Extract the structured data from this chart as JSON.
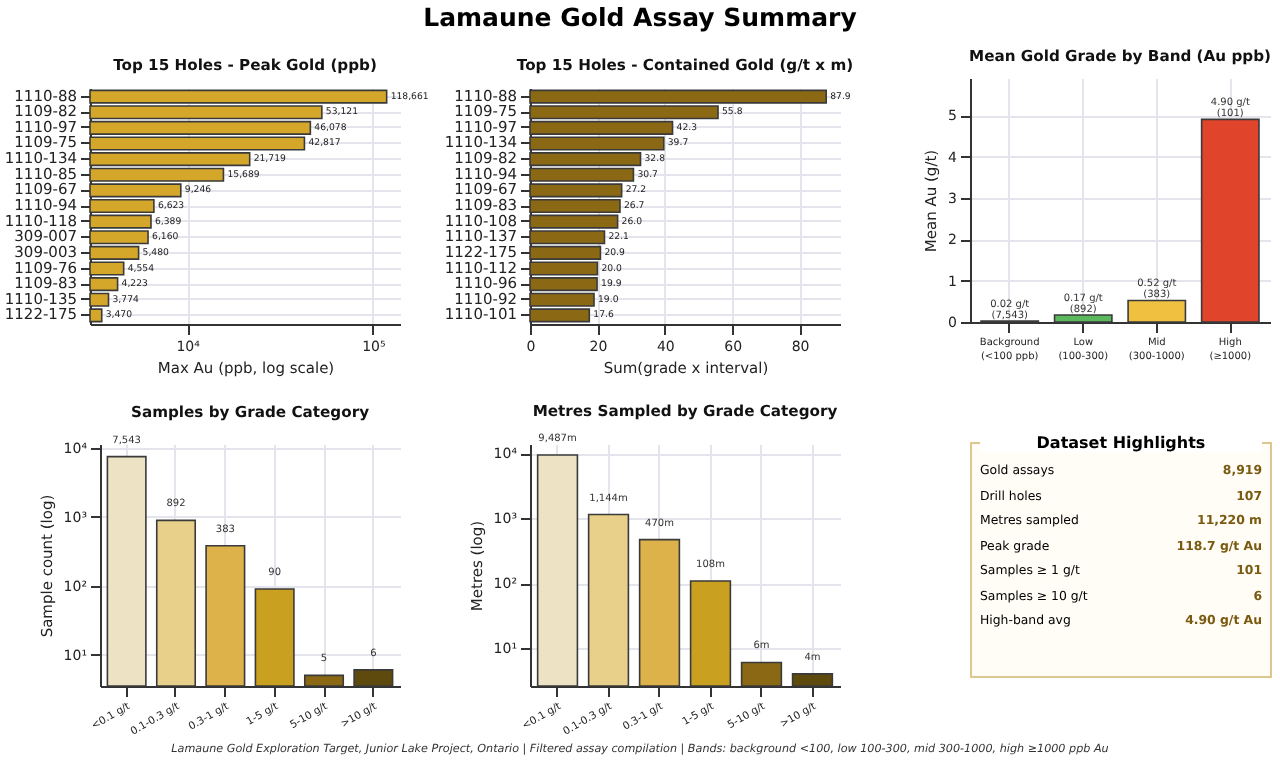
{
  "chart_data": [
    {
      "type": "other",
      "title": "Lamaune Gold Assay Summary",
      "annotations": [
        "Lamaune Gold Exploration Target, Junior Lake Project, Ontario  |  Filtered assay compilation  |  Bands: background <100, low 100-300, mid 300-1000, high ≥1000 ppb Au"
      ]
    },
    {
      "type": "bar",
      "orientation": "horizontal",
      "title": "Top 15 Holes - Peak Gold (ppb)",
      "xlabel": "Max Au (ppb, log scale)",
      "log": "x",
      "categories": [
        "1110-88",
        "1109-82",
        "1110-97",
        "1109-75",
        "1110-134",
        "1110-85",
        "1109-67",
        "1110-94",
        "1110-118",
        "309-007",
        "309-003",
        "1109-76",
        "1109-83",
        "1110-135",
        "1122-175"
      ],
      "values": [
        118661,
        53121,
        46078,
        42817,
        21719,
        15689,
        9246,
        6623,
        6389,
        6160,
        5480,
        4554,
        4223,
        3774,
        3470
      ],
      "value_labels": [
        "118,661",
        "53,121",
        "46,078",
        "42,817",
        "21,719",
        "15,689",
        "9,246",
        "6,623",
        "6,389",
        "6,160",
        "5,480",
        "4,554",
        "4,223",
        "3,774",
        "3,470"
      ],
      "color": "#d4a62a",
      "xlim": [
        3000,
        140000
      ],
      "xticks": [
        {
          "value": 10000,
          "label": "10⁴"
        },
        {
          "value": 100000,
          "label": "10⁵"
        }
      ],
      "grid": true
    },
    {
      "type": "bar",
      "orientation": "horizontal",
      "title": "Top 15 Holes - Contained Gold (g/t x m)",
      "xlabel": "Sum(grade x interval)",
      "categories": [
        "1110-88",
        "1109-75",
        "1110-97",
        "1110-134",
        "1109-82",
        "1110-94",
        "1109-67",
        "1109-83",
        "1110-108",
        "1110-137",
        "1122-175",
        "1110-112",
        "1110-96",
        "1110-92",
        "1110-101"
      ],
      "values": [
        87.9,
        55.8,
        42.3,
        39.7,
        32.8,
        30.7,
        27.2,
        26.7,
        26.0,
        22.1,
        20.9,
        20.0,
        19.9,
        19.0,
        17.6
      ],
      "value_labels": [
        "87.9",
        "55.8",
        "42.3",
        "39.7",
        "32.8",
        "30.7",
        "27.2",
        "26.7",
        "26.0",
        "22.1",
        "20.9",
        "20.0",
        "19.9",
        "19.0",
        "17.6"
      ],
      "color": "#8b6914",
      "xlim": [
        0,
        92
      ],
      "xticks": [
        0,
        20,
        40,
        60,
        80
      ],
      "grid": true
    },
    {
      "type": "bar",
      "title": "Mean Gold Grade by Band (Au ppb)",
      "ylabel": "Mean Au (g/t)",
      "categories": [
        "Background\n(<100 ppb)",
        "Low\n(100-300)",
        "Mid\n(300-1000)",
        "High\n(≥1000)"
      ],
      "values": [
        0.02,
        0.17,
        0.52,
        4.9
      ],
      "value_labels": [
        "0.02 g/t\n(7,543)",
        "0.17 g/t\n(892)",
        "0.52 g/t\n(383)",
        "4.90 g/t\n(101)"
      ],
      "colors": [
        "#3a3a3a",
        "#5cb85c",
        "#f0c040",
        "#e0452c"
      ],
      "ylim": [
        0,
        5.9
      ],
      "yticks": [
        0,
        1,
        2,
        3,
        4,
        5
      ],
      "grid": true
    },
    {
      "type": "bar",
      "title": "Samples by Grade Category",
      "ylabel": "Sample count (log)",
      "log": "y",
      "categories": [
        "<0.1 g/t",
        "0.1-0.3 g/t",
        "0.3-1 g/t",
        "1-5 g/t",
        "5-10 g/t",
        ">10 g/t"
      ],
      "values": [
        7543,
        892,
        383,
        90,
        5,
        6
      ],
      "value_labels": [
        "7,543",
        "892",
        "383",
        "90",
        "5",
        "6"
      ],
      "colors": [
        "#ede2c4",
        "#e8d08a",
        "#ddb24a",
        "#c9a020",
        "#8b6914",
        "#5e4a0c"
      ],
      "ylim": [
        3.5,
        11500
      ],
      "yticks": [
        {
          "value": 10,
          "label": "10¹"
        },
        {
          "value": 100,
          "label": "10²"
        },
        {
          "value": 1000,
          "label": "10³"
        },
        {
          "value": 10000,
          "label": "10⁴"
        }
      ],
      "grid": true
    },
    {
      "type": "bar",
      "title": "Metres Sampled by Grade Category",
      "ylabel": "Metres (log)",
      "log": "y",
      "categories": [
        "<0.1 g/t",
        "0.1-0.3 g/t",
        "0.3-1 g/t",
        "1-5 g/t",
        "5-10 g/t",
        ">10 g/t"
      ],
      "values": [
        9487,
        1144,
        470,
        108,
        6,
        4
      ],
      "value_labels": [
        "9,487m",
        "1,144m",
        "470m",
        "108m",
        "6m",
        "4m"
      ],
      "colors": [
        "#ede2c4",
        "#e8d08a",
        "#ddb24a",
        "#c9a020",
        "#8b6914",
        "#5e4a0c"
      ],
      "ylim": [
        2.6,
        14000
      ],
      "yticks": [
        {
          "value": 10,
          "label": "10¹"
        },
        {
          "value": 100,
          "label": "10²"
        },
        {
          "value": 1000,
          "label": "10³"
        },
        {
          "value": 10000,
          "label": "10⁴"
        }
      ],
      "grid": true
    },
    {
      "type": "other",
      "title": "Dataset Highlights",
      "annotations": [
        "Gold assays",
        "8,919",
        "Drill holes",
        "107",
        "Metres sampled",
        "11,220 m",
        "Peak grade",
        "118.7 g/t Au",
        "Samples ≥ 1 g/t",
        "101",
        "Samples ≥ 10 g/t",
        "6",
        "High-band avg",
        "4.90 g/t Au"
      ]
    }
  ]
}
